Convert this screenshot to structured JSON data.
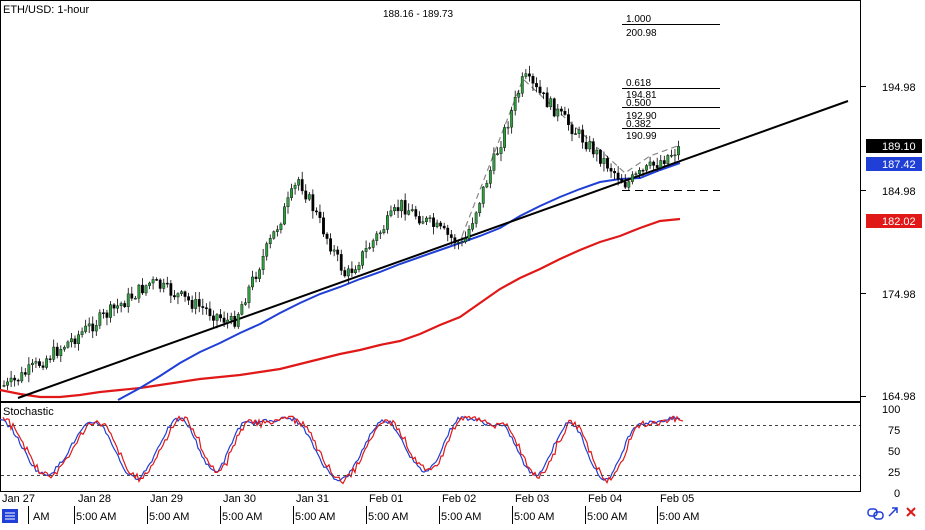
{
  "header": {
    "title": "ETH/USD: 1-hour",
    "range": "188.16 - 189.73"
  },
  "price_axis": {
    "ticks": [
      "194.98",
      "184.98",
      "174.98",
      "164.98"
    ],
    "current_price": "189.10",
    "ma_blue_value": "187.42",
    "ma_red_value": "182.02"
  },
  "fibonacci": [
    {
      "ratio": "1.000",
      "price": "200.98"
    },
    {
      "ratio": "0.618",
      "price": "194.81"
    },
    {
      "ratio": "0.500",
      "price": "192.90"
    },
    {
      "ratio": "0.382",
      "price": "190.99"
    }
  ],
  "stochastic": {
    "label": "Stochastic",
    "ticks": [
      "100",
      "75",
      "50",
      "25",
      "0"
    ]
  },
  "time_axis": {
    "dates": [
      "Jan 27",
      "Jan 28",
      "Jan 29",
      "Jan 30",
      "Jan 31",
      "Feb 01",
      "Feb 02",
      "Feb 03",
      "Feb 04",
      "Feb 05"
    ],
    "times": [
      "AM",
      "5:00 AM",
      "5:00 AM",
      "5:00 AM",
      "5:00 AM",
      "5:00 AM",
      "5:00 AM",
      "5:00 AM",
      "5:00 AM",
      "5:00 AM"
    ]
  },
  "colors": {
    "bull": "#2e9e3e",
    "bear": "#000000",
    "ma_fast": "#1f3fd6",
    "ma_slow": "#e01818",
    "stoch_k": "#1f3fd6",
    "stoch_d": "#e01818",
    "current_bg": "#000000",
    "blue_bg": "#1f3fd6",
    "red_bg": "#e01818"
  },
  "chart_data": {
    "type": "candlestick",
    "title": "ETH/USD: 1-hour",
    "ylim": [
      164.98,
      204.5
    ],
    "price_ticks": [
      194.98,
      184.98,
      174.98,
      164.98
    ],
    "key_points": [
      {
        "date": "Jan 27",
        "price": 166.0
      },
      {
        "date": "Jan 29",
        "price": 176.0
      },
      {
        "date": "Jan 30",
        "price": 172.0
      },
      {
        "date": "Jan 31",
        "price": 186.0
      },
      {
        "date": "Jan 31",
        "price": 176.5
      },
      {
        "date": "Feb 01",
        "price": 183.5
      },
      {
        "date": "Feb 02",
        "price": 179.5
      },
      {
        "date": "Feb 02",
        "price": 193.0
      },
      {
        "date": "Feb 03",
        "price": 195.8
      },
      {
        "date": "Feb 03",
        "price": 189.5
      },
      {
        "date": "Feb 04",
        "price": 185.5
      },
      {
        "date": "Feb 05",
        "price": 189.1
      }
    ],
    "fib_levels": [
      200.98,
      194.81,
      192.9,
      190.99
    ],
    "stochastic_levels": [
      100,
      75,
      50,
      25,
      0
    ]
  }
}
